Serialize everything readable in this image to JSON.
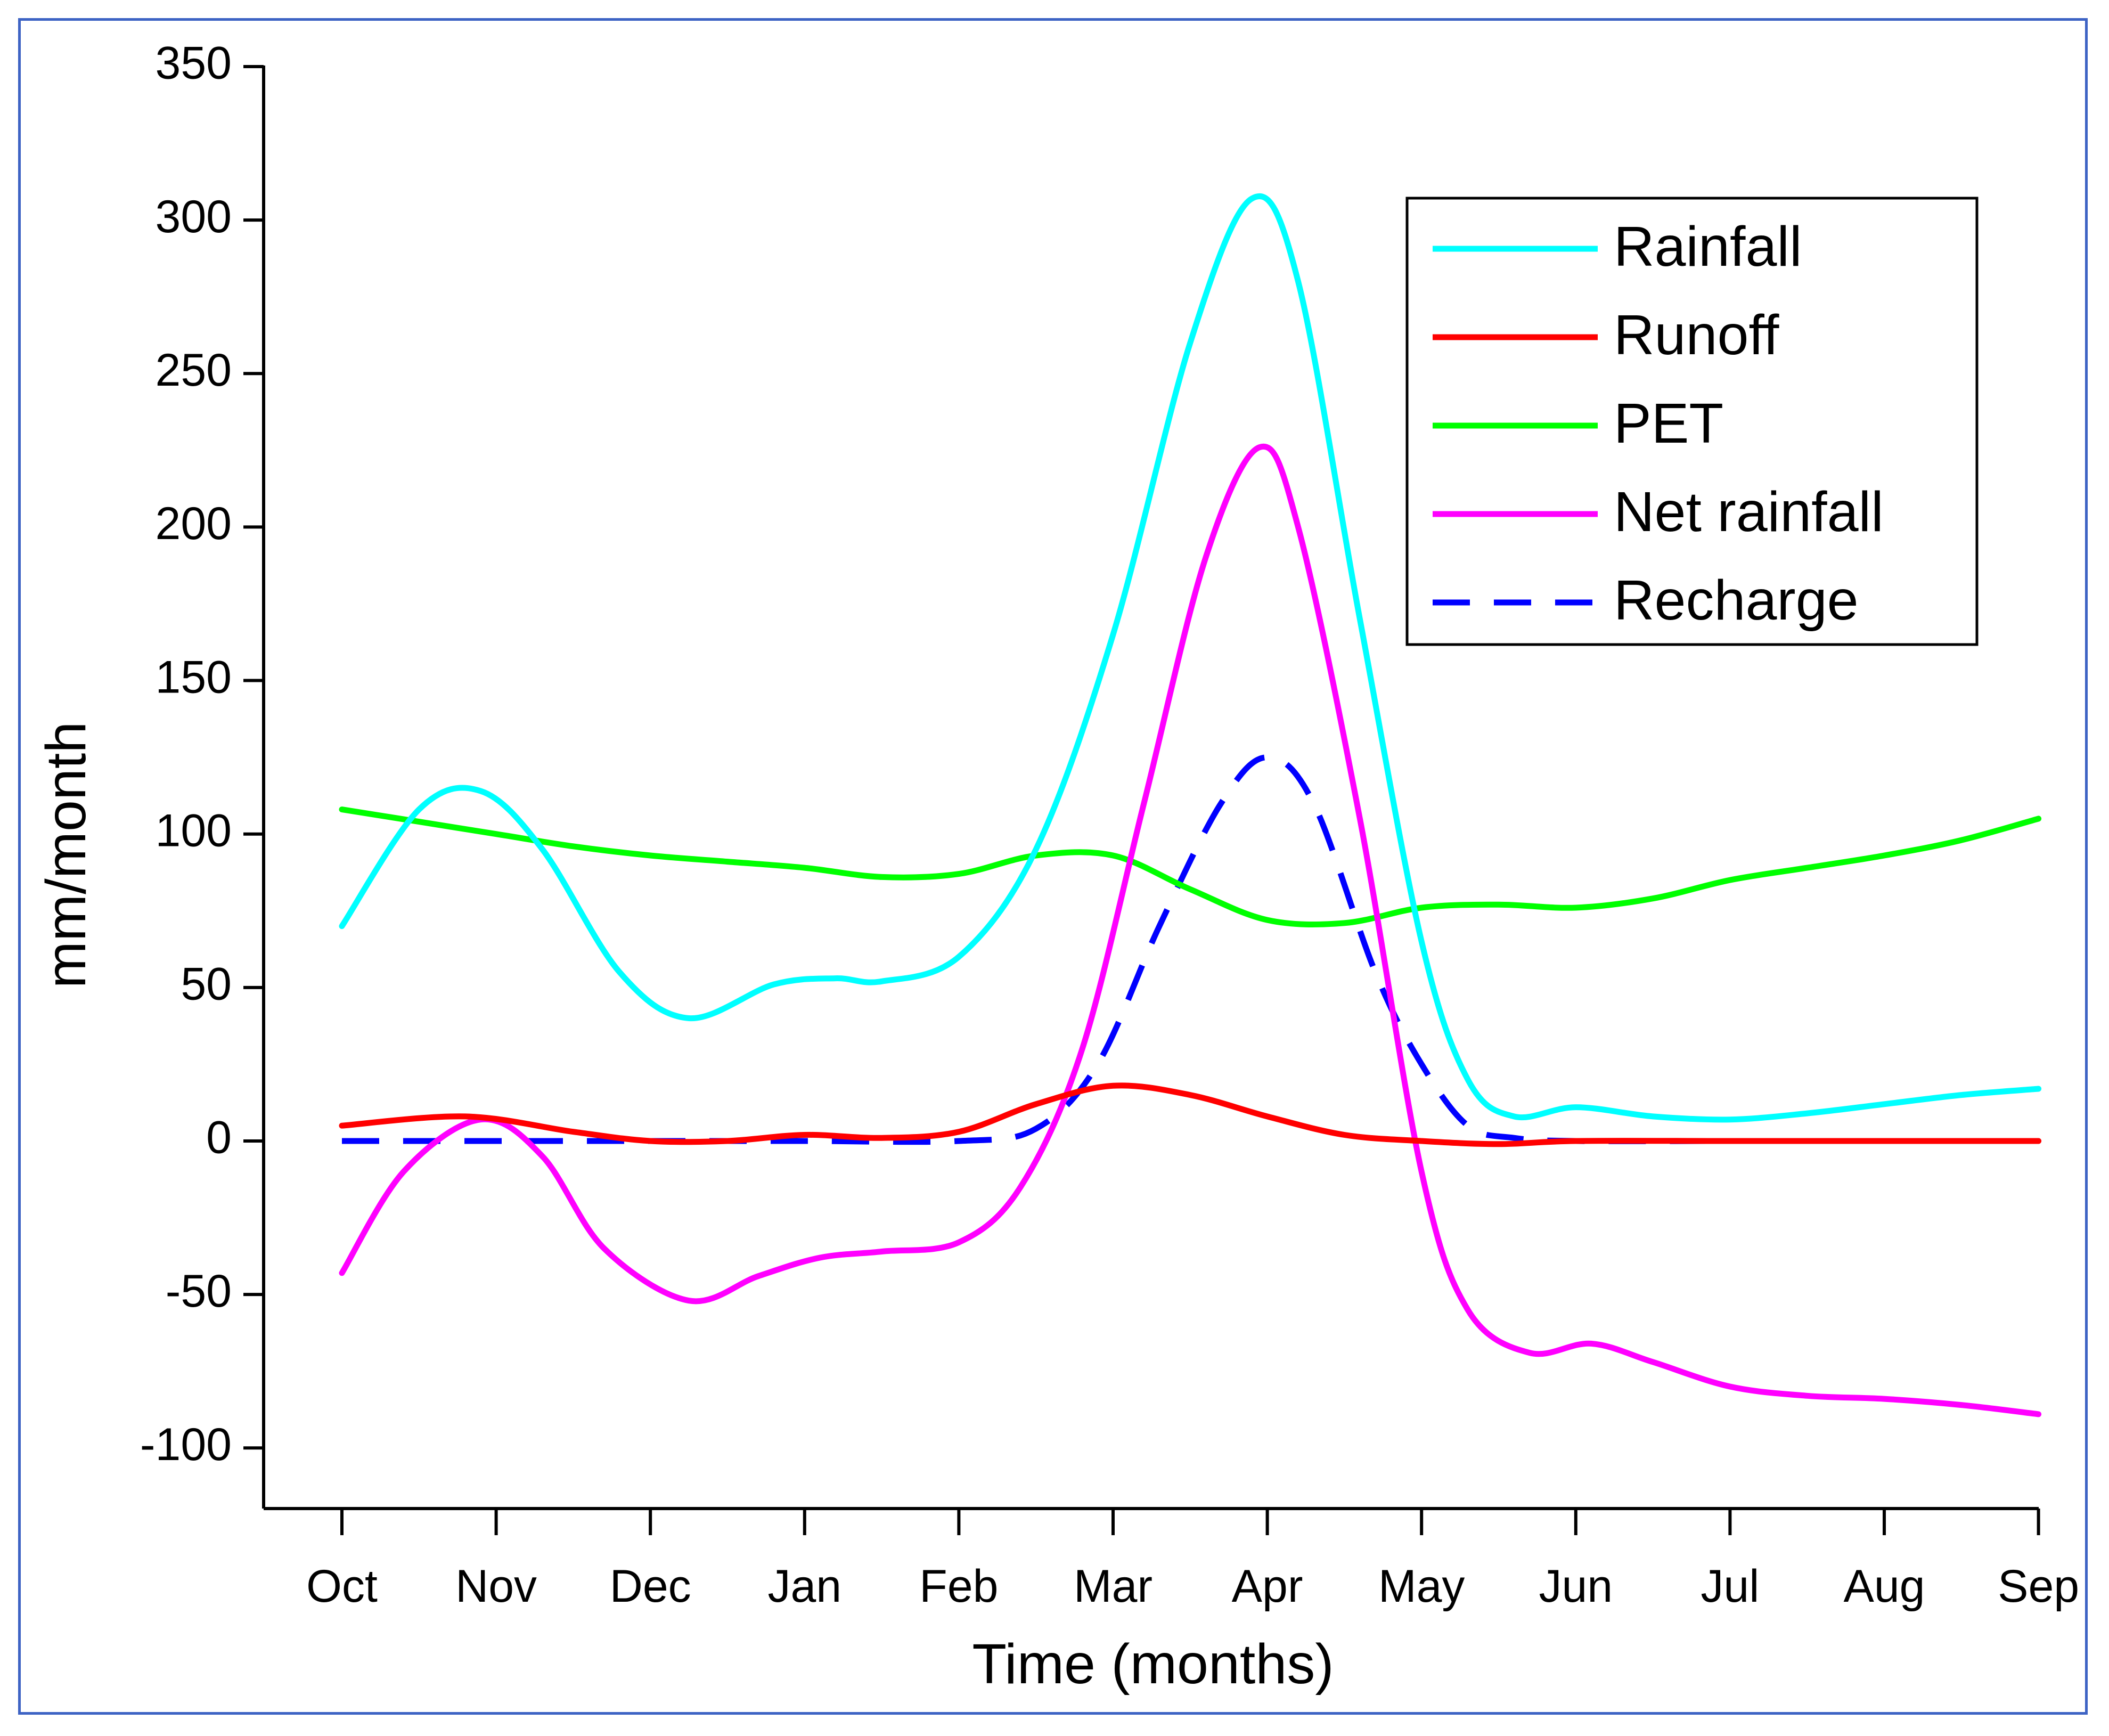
{
  "chart_data": {
    "type": "line",
    "title": "",
    "xlabel": "Time (months)",
    "ylabel": "mm/month",
    "ylim": [
      -120,
      350
    ],
    "yticks": [
      350,
      300,
      250,
      200,
      150,
      100,
      50,
      0,
      -50,
      -100
    ],
    "ytick_labels": [
      "350",
      "300",
      "250",
      "200",
      "150",
      "100",
      "50",
      "0",
      "-50",
      "-100"
    ],
    "categories": [
      "Oct",
      "Nov",
      "Dec",
      "Jan",
      "Feb",
      "Mar",
      "Apr",
      "May",
      "Jun",
      "Jul",
      "Aug",
      "Sep"
    ],
    "legend_position": "top-right",
    "series": [
      {
        "name": "Rainfall",
        "color": "#00ffff",
        "dash": false,
        "points": [
          [
            0,
            70
          ],
          [
            0.5,
            108
          ],
          [
            0.9,
            114
          ],
          [
            1.3,
            95
          ],
          [
            1.8,
            55
          ],
          [
            2.25,
            40
          ],
          [
            2.8,
            51
          ],
          [
            3.2,
            53
          ],
          [
            3.5,
            52
          ],
          [
            4.0,
            60
          ],
          [
            4.5,
            95
          ],
          [
            5.0,
            165
          ],
          [
            5.5,
            260
          ],
          [
            5.9,
            307
          ],
          [
            6.2,
            280
          ],
          [
            6.6,
            170
          ],
          [
            7.0,
            65
          ],
          [
            7.3,
            20
          ],
          [
            7.6,
            8
          ],
          [
            8.0,
            11
          ],
          [
            8.5,
            8
          ],
          [
            9.0,
            7
          ],
          [
            9.5,
            9
          ],
          [
            10.0,
            12
          ],
          [
            10.5,
            15
          ],
          [
            11.0,
            17
          ]
        ]
      },
      {
        "name": "Runoff",
        "color": "#ff0000",
        "dash": false,
        "points": [
          [
            0,
            5
          ],
          [
            0.8,
            8
          ],
          [
            1.5,
            3
          ],
          [
            2.0,
            0
          ],
          [
            2.5,
            0
          ],
          [
            3.0,
            2
          ],
          [
            3.5,
            1
          ],
          [
            4.0,
            3
          ],
          [
            4.5,
            12
          ],
          [
            5.0,
            18
          ],
          [
            5.5,
            15
          ],
          [
            6.0,
            8
          ],
          [
            6.5,
            2
          ],
          [
            7.0,
            0
          ],
          [
            7.5,
            -1
          ],
          [
            8.0,
            0
          ],
          [
            9.0,
            0
          ],
          [
            10.0,
            0
          ],
          [
            11.0,
            0
          ]
        ]
      },
      {
        "name": "PET",
        "color": "#00ff00",
        "dash": false,
        "points": [
          [
            0,
            108
          ],
          [
            0.5,
            104
          ],
          [
            1.0,
            100
          ],
          [
            1.5,
            96
          ],
          [
            2.0,
            93
          ],
          [
            2.5,
            91
          ],
          [
            3.0,
            89
          ],
          [
            3.5,
            86
          ],
          [
            4.0,
            87
          ],
          [
            4.5,
            93
          ],
          [
            5.0,
            93
          ],
          [
            5.5,
            82
          ],
          [
            6.0,
            72
          ],
          [
            6.5,
            71
          ],
          [
            7.0,
            76
          ],
          [
            7.5,
            77
          ],
          [
            8.0,
            76
          ],
          [
            8.5,
            79
          ],
          [
            9.0,
            85
          ],
          [
            9.5,
            89
          ],
          [
            10.0,
            93
          ],
          [
            10.5,
            98
          ],
          [
            11.0,
            105
          ]
        ]
      },
      {
        "name": "Net rainfall",
        "color": "#ff00ff",
        "dash": false,
        "points": [
          [
            0,
            -43
          ],
          [
            0.4,
            -10
          ],
          [
            0.9,
            7
          ],
          [
            1.3,
            -5
          ],
          [
            1.7,
            -35
          ],
          [
            2.25,
            -52
          ],
          [
            2.7,
            -44
          ],
          [
            3.1,
            -38
          ],
          [
            3.5,
            -36
          ],
          [
            4.0,
            -33
          ],
          [
            4.4,
            -15
          ],
          [
            4.8,
            30
          ],
          [
            5.2,
            110
          ],
          [
            5.6,
            190
          ],
          [
            5.95,
            226
          ],
          [
            6.2,
            200
          ],
          [
            6.6,
            105
          ],
          [
            7.0,
            -10
          ],
          [
            7.3,
            -55
          ],
          [
            7.7,
            -69
          ],
          [
            8.1,
            -66
          ],
          [
            8.5,
            -72
          ],
          [
            9.0,
            -80
          ],
          [
            9.5,
            -83
          ],
          [
            10.0,
            -84
          ],
          [
            10.5,
            -86
          ],
          [
            11.0,
            -89
          ]
        ]
      },
      {
        "name": "Recharge",
        "color": "#0000ff",
        "dash": true,
        "points": [
          [
            0,
            0
          ],
          [
            1.0,
            0
          ],
          [
            2.0,
            0
          ],
          [
            3.0,
            0
          ],
          [
            4.0,
            0
          ],
          [
            4.5,
            4
          ],
          [
            4.9,
            25
          ],
          [
            5.3,
            70
          ],
          [
            5.7,
            110
          ],
          [
            6.0,
            125
          ],
          [
            6.3,
            110
          ],
          [
            6.7,
            55
          ],
          [
            7.0,
            25
          ],
          [
            7.3,
            5
          ],
          [
            7.6,
            1
          ],
          [
            8.0,
            0
          ],
          [
            9.0,
            0
          ],
          [
            10.0,
            0
          ],
          [
            11.0,
            0
          ]
        ]
      }
    ]
  }
}
